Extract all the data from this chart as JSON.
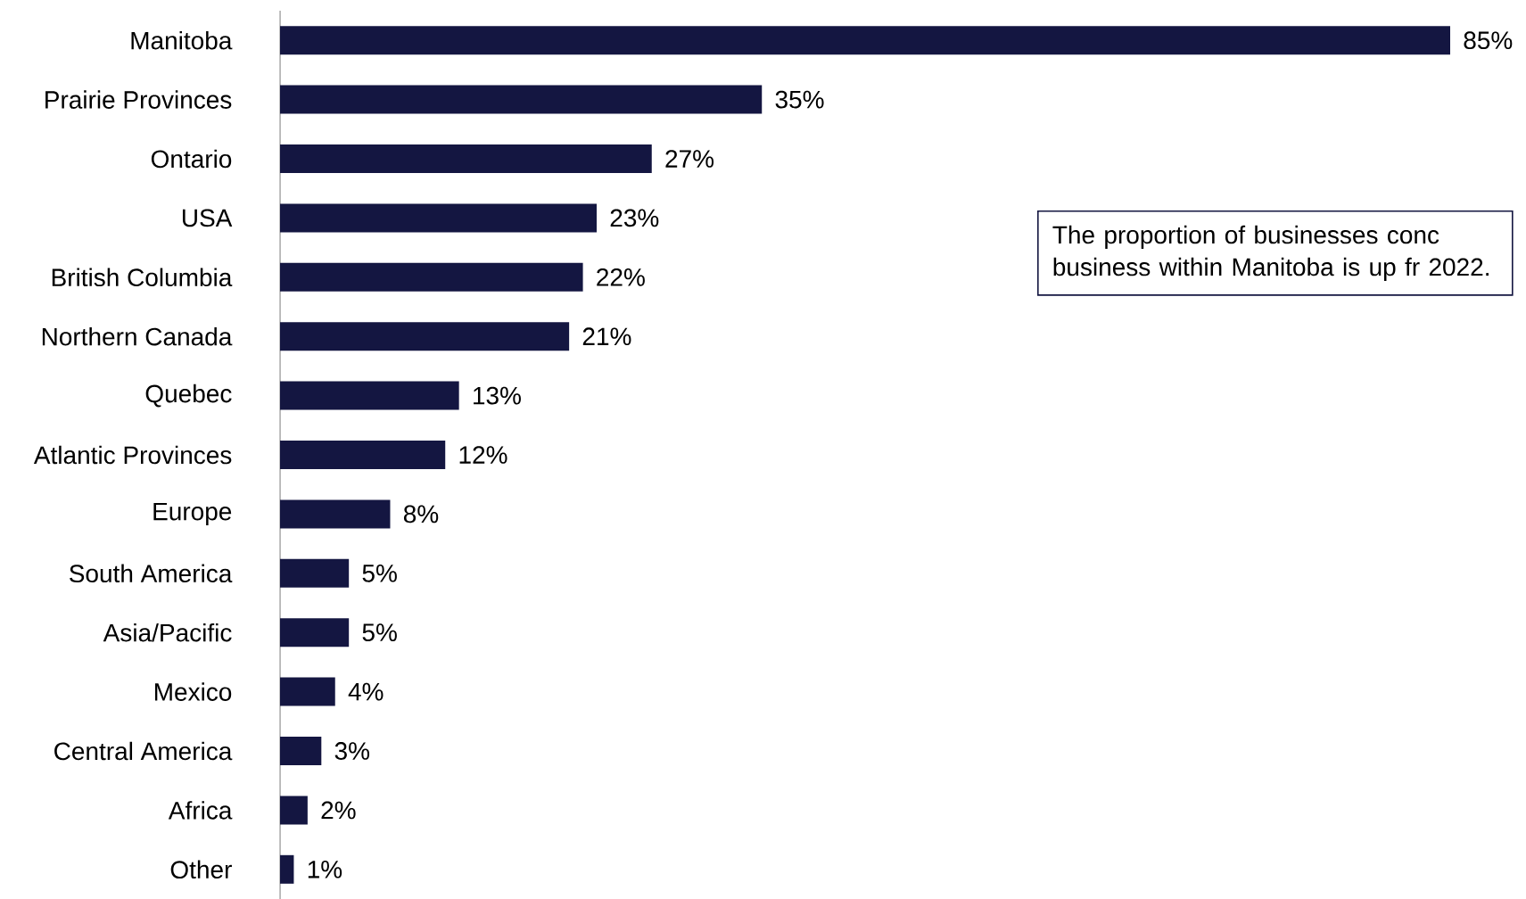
{
  "chart_data": {
    "type": "bar",
    "orientation": "horizontal",
    "color": "#141641",
    "categories": [
      "Manitoba",
      "Prairie Provinces",
      "Ontario",
      "USA",
      "British Columbia",
      "Northern Canada",
      "Quebec",
      "Atlantic Provinces",
      "Europe",
      "South America",
      "Asia/Pacific",
      "Mexico",
      "Central America",
      "Africa",
      "Other"
    ],
    "values": [
      85,
      35,
      27,
      23,
      22,
      21,
      13,
      12,
      8,
      5,
      5,
      4,
      3,
      2,
      1
    ],
    "value_labels": [
      "85%",
      "35%",
      "27%",
      "23%",
      "22%",
      "21%",
      "13%",
      "12%",
      "8%",
      "5%",
      "5%",
      "4%",
      "3%",
      "2%",
      "1%"
    ],
    "annotations": [
      "The proportion of businesses conc business within Manitoba is up fr 2022."
    ]
  }
}
